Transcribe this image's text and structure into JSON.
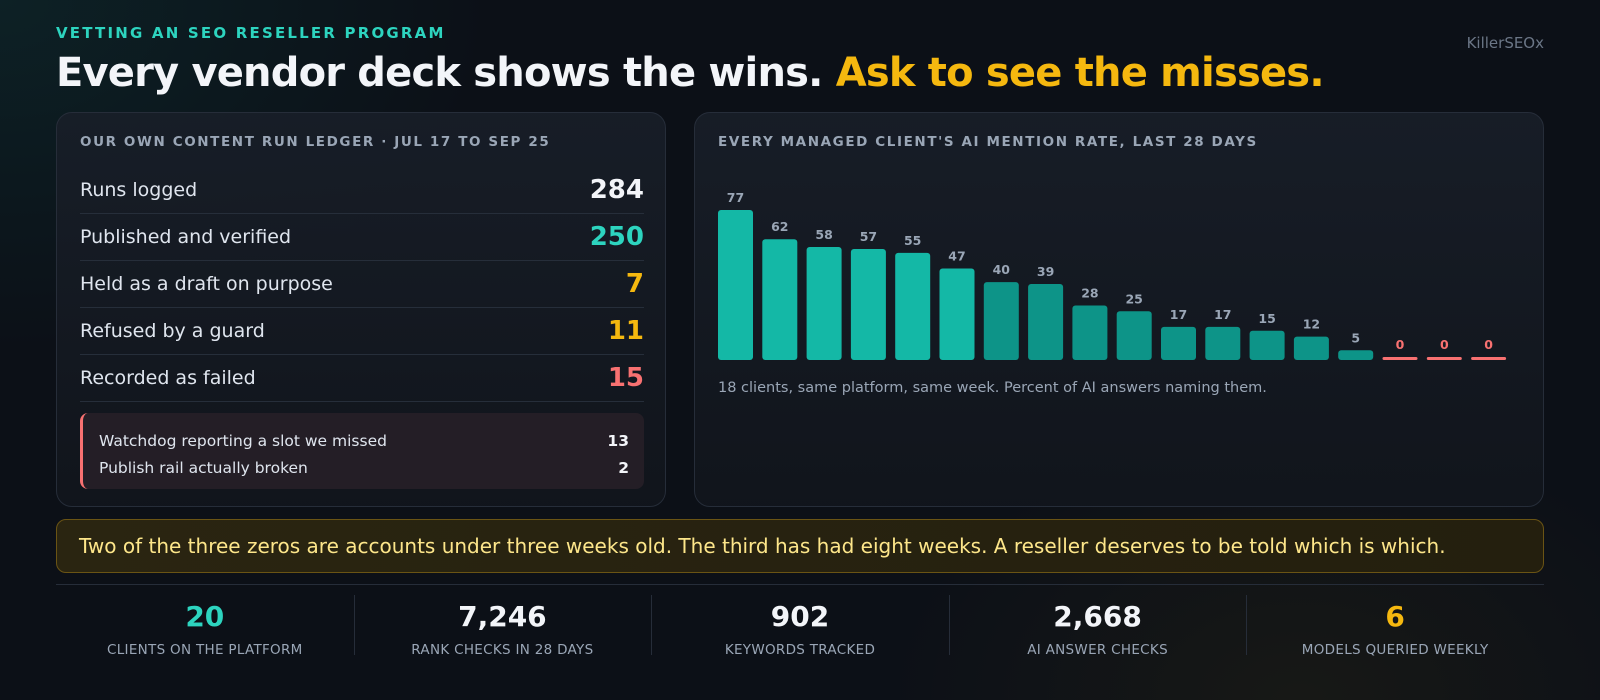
{
  "header": {
    "eyebrow": "VETTING AN SEO RESELLER PROGRAM",
    "brand": "KillerSEOx",
    "headline_main": "Every vendor deck shows the wins.",
    "headline_accent": "Ask to see the misses."
  },
  "ledger": {
    "title": "OUR OWN CONTENT RUN LEDGER · JUL 17 TO SEP 25",
    "rows": [
      {
        "label": "Runs logged",
        "value": "284"
      },
      {
        "label": "Published and verified",
        "value": "250"
      },
      {
        "label": "Held as a draft on purpose",
        "value": "7"
      },
      {
        "label": "Refused by a guard",
        "value": "11"
      },
      {
        "label": "Recorded as failed",
        "value": "15"
      }
    ],
    "failures": [
      {
        "label": "Watchdog reporting a slot we missed",
        "value": "13"
      },
      {
        "label": "Publish rail actually broken",
        "value": "2"
      }
    ]
  },
  "chart_panel": {
    "title": "EVERY MANAGED CLIENT'S AI MENTION RATE, LAST 28 DAYS",
    "caption": "18 clients, same platform, same week. Percent of AI answers naming them."
  },
  "chart_data": {
    "type": "bar",
    "title": "EVERY MANAGED CLIENT'S AI MENTION RATE, LAST 28 DAYS",
    "categories": [
      "",
      "",
      "",
      "",
      "",
      "",
      "",
      "",
      "",
      "",
      "",
      "",
      "",
      "",
      "",
      "",
      "",
      ""
    ],
    "values": [
      77,
      62,
      58,
      57,
      55,
      47,
      40,
      39,
      28,
      25,
      17,
      17,
      15,
      12,
      5,
      0,
      0,
      0
    ],
    "ylim": [
      0,
      80
    ],
    "grid": false,
    "colors": {
      "high": "#14b8a6",
      "mid": "#0d9488",
      "zero": "#f87171",
      "label": "#9aa6b6"
    }
  },
  "callout": {
    "text": "Two of the three zeros are accounts under three weeks old. The third has had eight weeks. A reseller deserves to be told which is which."
  },
  "stats": [
    {
      "value": "20",
      "label": "CLIENTS ON THE PLATFORM"
    },
    {
      "value": "7,246",
      "label": "RANK CHECKS IN 28 DAYS"
    },
    {
      "value": "902",
      "label": "KEYWORDS TRACKED"
    },
    {
      "value": "2,668",
      "label": "AI ANSWER CHECKS"
    },
    {
      "value": "6",
      "label": "MODELS QUERIED WEEKLY"
    }
  ]
}
